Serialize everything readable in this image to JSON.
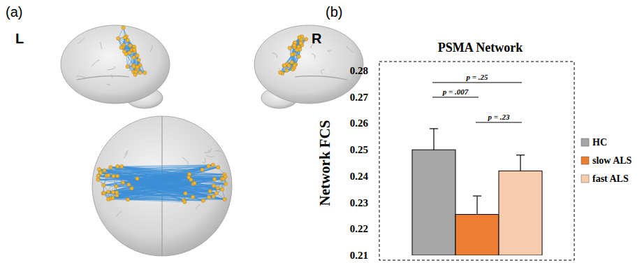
{
  "panel_labels": [
    "(a)",
    "(b)"
  ],
  "hemisphere_labels": [
    "L",
    "R"
  ],
  "chart_data": {
    "type": "bar",
    "title": "PSMA Network",
    "y_label": "Network FCS",
    "categories": [
      "HC",
      "slow ALS",
      "fast ALS"
    ],
    "values": [
      0.25,
      0.2255,
      0.242
    ],
    "errors": [
      0.008,
      0.007,
      0.006
    ],
    "colors": [
      "#a6a6a6",
      "#ed7d31",
      "#f8cbad"
    ],
    "ylim": [
      0.21,
      0.28
    ],
    "yticks": [
      0.21,
      0.22,
      0.23,
      0.24,
      0.25,
      0.26,
      0.27,
      0.28
    ],
    "grid": false,
    "legend": "right",
    "tick_labels": "y",
    "annotations": [
      {
        "text": "p = .25",
        "between": [
          "HC",
          "fast ALS"
        ]
      },
      {
        "text": "p = .007",
        "between": [
          "HC",
          "slow ALS"
        ]
      },
      {
        "text": "p = .23",
        "between": [
          "slow ALS",
          "fast ALS"
        ]
      }
    ]
  }
}
